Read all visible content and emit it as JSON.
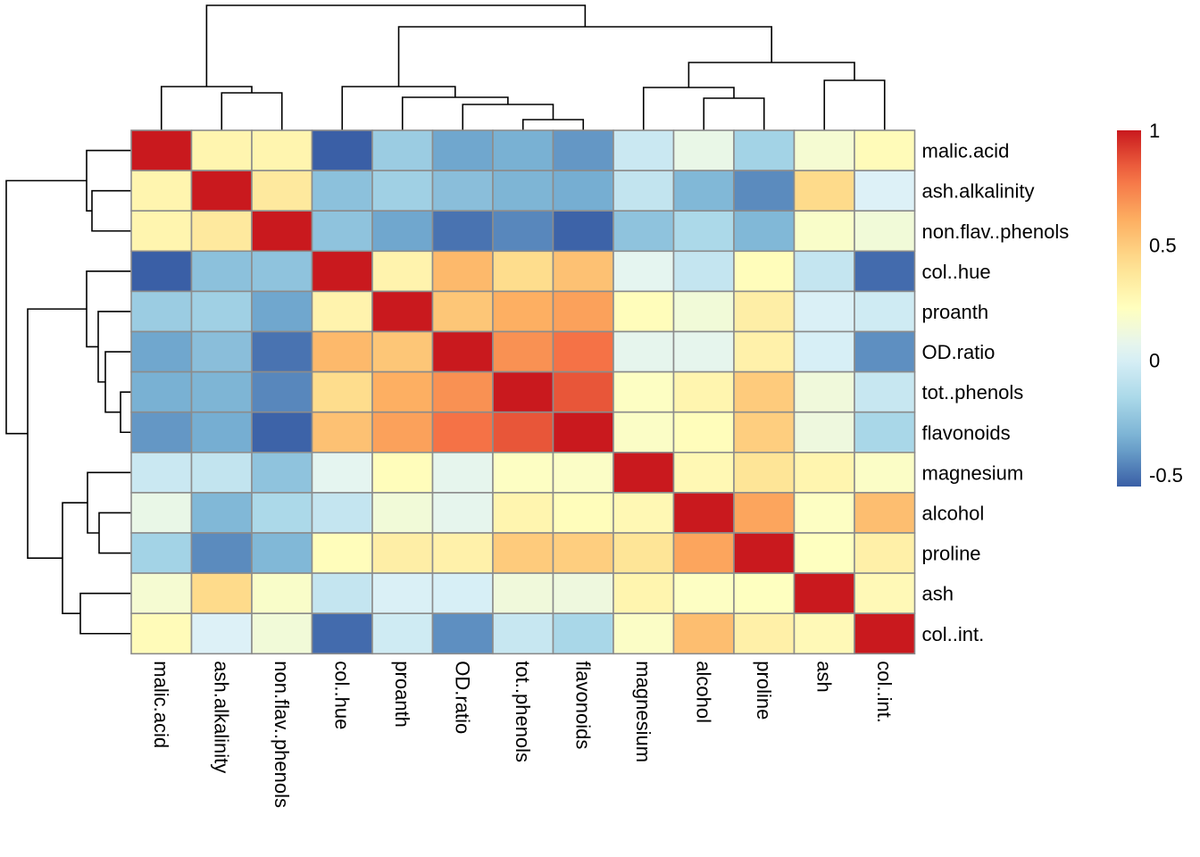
{
  "chart_data": {
    "type": "heatmap",
    "title": "",
    "row_labels": [
      "malic.acid",
      "ash.alkalinity",
      "non.flav..phenols",
      "col..hue",
      "proanth",
      "OD.ratio",
      "tot..phenols",
      "flavonoids",
      "magnesium",
      "alcohol",
      "proline",
      "ash",
      "col..int."
    ],
    "col_labels": [
      "malic.acid",
      "ash.alkalinity",
      "non.flav..phenols",
      "col..hue",
      "proanth",
      "OD.ratio",
      "tot..phenols",
      "flavonoids",
      "magnesium",
      "alcohol",
      "proline",
      "ash",
      "col..int."
    ],
    "values": [
      [
        1.0,
        0.29,
        0.29,
        -0.56,
        -0.22,
        -0.37,
        -0.34,
        -0.41,
        -0.05,
        0.09,
        -0.19,
        0.16,
        0.25
      ],
      [
        0.29,
        1.0,
        0.36,
        -0.27,
        -0.2,
        -0.28,
        -0.32,
        -0.35,
        -0.08,
        -0.31,
        -0.44,
        0.44,
        0.02
      ],
      [
        0.29,
        0.36,
        1.0,
        -0.26,
        -0.37,
        -0.5,
        -0.45,
        -0.54,
        -0.26,
        -0.16,
        -0.31,
        0.19,
        0.14
      ],
      [
        -0.56,
        -0.27,
        -0.26,
        1.0,
        0.3,
        0.57,
        0.43,
        0.54,
        0.06,
        -0.07,
        0.24,
        -0.07,
        -0.52
      ],
      [
        -0.22,
        -0.2,
        -0.37,
        0.3,
        1.0,
        0.52,
        0.61,
        0.65,
        0.24,
        0.14,
        0.33,
        0.01,
        -0.03
      ],
      [
        -0.37,
        -0.28,
        -0.5,
        0.57,
        0.52,
        1.0,
        0.7,
        0.79,
        0.07,
        0.07,
        0.31,
        0.0,
        -0.43
      ],
      [
        -0.34,
        -0.32,
        -0.45,
        0.43,
        0.61,
        0.7,
        1.0,
        0.86,
        0.21,
        0.29,
        0.5,
        0.13,
        -0.06
      ],
      [
        -0.41,
        -0.35,
        -0.54,
        0.54,
        0.65,
        0.79,
        0.86,
        1.0,
        0.2,
        0.24,
        0.49,
        0.12,
        -0.17
      ],
      [
        -0.05,
        -0.08,
        -0.26,
        0.06,
        0.24,
        0.07,
        0.21,
        0.2,
        1.0,
        0.27,
        0.39,
        0.29,
        0.2
      ],
      [
        0.09,
        -0.31,
        -0.16,
        -0.07,
        0.14,
        0.07,
        0.29,
        0.24,
        0.27,
        1.0,
        0.64,
        0.21,
        0.55
      ],
      [
        -0.19,
        -0.44,
        -0.31,
        0.24,
        0.33,
        0.31,
        0.5,
        0.49,
        0.39,
        0.64,
        1.0,
        0.22,
        0.32
      ],
      [
        0.16,
        0.44,
        0.19,
        -0.07,
        0.01,
        0.0,
        0.13,
        0.12,
        0.29,
        0.21,
        0.22,
        1.0,
        0.26
      ],
      [
        0.25,
        0.02,
        0.14,
        -0.52,
        -0.03,
        -0.43,
        -0.06,
        -0.17,
        0.2,
        0.55,
        0.32,
        0.26,
        1.0
      ]
    ],
    "color_scale": {
      "range": [
        -0.55,
        1.0
      ],
      "palette": [
        "#4575b4",
        "#74add1",
        "#abd9e9",
        "#e0f3f8",
        "#ffffbf",
        "#fee090",
        "#fdae61",
        "#f46d43",
        "#d73027"
      ],
      "low_color": "#3a5fa6",
      "high_color": "#c9191e"
    },
    "legend": {
      "position": "right",
      "ticks": [
        1,
        0.5,
        0,
        -0.5
      ],
      "tick_labels": [
        "1",
        "0.5",
        "0",
        "-0.5"
      ]
    },
    "col_dendrogram": [
      {
        "a": "malic.acid",
        "b": "G1",
        "h": 0.62,
        "id": "C1"
      },
      {
        "a": "ash.alkalinity",
        "b": "non.flav..phenols",
        "h": 0.52,
        "id": "G1"
      }
    ],
    "grid": false
  }
}
